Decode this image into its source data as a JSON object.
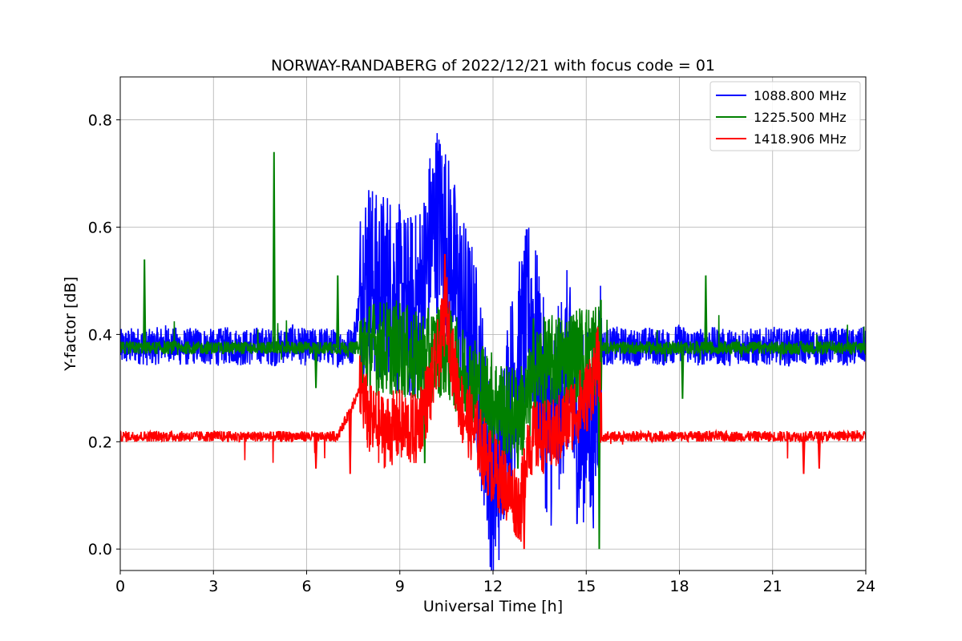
{
  "chart_data": {
    "type": "line",
    "title": "NORWAY-RANDABERG of 2022/12/21 with focus code = 01",
    "xlabel": "Universal Time [h]",
    "ylabel": "Y-factor [dB]",
    "xlim": [
      0,
      24
    ],
    "ylim": [
      -0.04,
      0.88
    ],
    "xticks": [
      0,
      3,
      6,
      9,
      12,
      15,
      18,
      21,
      24
    ],
    "xtick_labels": [
      "0",
      "3",
      "6",
      "9",
      "12",
      "15",
      "18",
      "21",
      "24"
    ],
    "yticks": [
      0.0,
      0.2,
      0.4,
      0.6,
      0.8
    ],
    "ytick_labels": [
      "0.0",
      "0.2",
      "0.4",
      "0.6",
      "0.8"
    ],
    "grid": true,
    "legend_position": "top-right",
    "series": [
      {
        "name": "1088.800 MHz",
        "color": "#0000ff",
        "x": [
          0,
          0.5,
          1.0,
          1.5,
          2.0,
          2.5,
          3.0,
          3.5,
          4.0,
          4.5,
          5.0,
          5.5,
          6.0,
          6.5,
          7.0,
          7.5,
          7.8,
          8.0,
          8.3,
          8.6,
          8.9,
          9.2,
          9.5,
          9.8,
          10.0,
          10.2,
          10.4,
          10.6,
          10.8,
          11.0,
          11.2,
          11.4,
          11.6,
          11.8,
          12.0,
          12.2,
          12.4,
          12.6,
          12.8,
          13.0,
          13.2,
          13.4,
          13.6,
          13.8,
          14.0,
          14.2,
          14.4,
          14.6,
          14.8,
          15.0,
          15.2,
          15.5,
          16.0,
          16.5,
          17.0,
          17.5,
          18.0,
          18.5,
          19.0,
          19.5,
          20.0,
          20.5,
          21.0,
          21.5,
          22.0,
          22.5,
          23.0,
          23.5,
          24.0
        ],
        "y": [
          0.375,
          0.38,
          0.375,
          0.385,
          0.375,
          0.38,
          0.375,
          0.38,
          0.375,
          0.38,
          0.375,
          0.385,
          0.375,
          0.38,
          0.375,
          0.38,
          0.5,
          0.52,
          0.48,
          0.5,
          0.47,
          0.45,
          0.45,
          0.5,
          0.58,
          0.62,
          0.6,
          0.55,
          0.5,
          0.45,
          0.42,
          0.38,
          0.3,
          0.2,
          0.1,
          0.15,
          0.25,
          0.3,
          0.35,
          0.4,
          0.45,
          0.38,
          0.3,
          0.2,
          0.25,
          0.3,
          0.35,
          0.25,
          0.2,
          0.25,
          0.2,
          0.375,
          0.38,
          0.375,
          0.38,
          0.375,
          0.385,
          0.375,
          0.38,
          0.375,
          0.38,
          0.375,
          0.38,
          0.375,
          0.38,
          0.375,
          0.38,
          0.375,
          0.38
        ]
      },
      {
        "name": "1225.500 MHz",
        "color": "#008000",
        "x": [
          0,
          0.8,
          1.5,
          3.0,
          4.95,
          6.0,
          7.0,
          7.8,
          9.0,
          9.6,
          10.4,
          11.0,
          11.6,
          12.0,
          12.5,
          13.0,
          13.5,
          14.5,
          15.4,
          16.0,
          18.0,
          18.85,
          20.0,
          22.0,
          24.0
        ],
        "y": [
          0.375,
          0.375,
          0.375,
          0.375,
          0.375,
          0.375,
          0.375,
          0.375,
          0.375,
          0.35,
          0.375,
          0.33,
          0.3,
          0.28,
          0.25,
          0.26,
          0.34,
          0.36,
          0.375,
          0.375,
          0.375,
          0.375,
          0.375,
          0.375,
          0.375
        ],
        "spikes": [
          [
            0.78,
            0.54
          ],
          [
            4.95,
            0.74
          ],
          [
            7.0,
            0.51
          ],
          [
            6.3,
            0.3
          ],
          [
            9.8,
            0.16
          ],
          [
            15.42,
            0.0
          ],
          [
            18.1,
            0.28
          ],
          [
            18.85,
            0.51
          ],
          [
            12.8,
            0.15
          ],
          [
            13.3,
            0.43
          ]
        ]
      },
      {
        "name": "1418.906 MHz",
        "color": "#ff0000",
        "x": [
          0,
          1.0,
          2.0,
          3.0,
          4.0,
          5.0,
          6.0,
          7.0,
          7.75,
          8.0,
          8.5,
          9.0,
          9.5,
          10.0,
          10.3,
          10.5,
          10.7,
          11.0,
          11.5,
          11.7,
          12.0,
          12.3,
          12.6,
          12.9,
          13.1,
          13.5,
          14.0,
          14.5,
          15.0,
          15.4,
          15.5,
          16.0,
          17.0,
          18.0,
          19.0,
          20.0,
          21.0,
          22.0,
          23.0,
          24.0
        ],
        "y": [
          0.21,
          0.21,
          0.21,
          0.21,
          0.21,
          0.21,
          0.21,
          0.21,
          0.3,
          0.24,
          0.22,
          0.23,
          0.22,
          0.3,
          0.38,
          0.45,
          0.35,
          0.26,
          0.21,
          0.18,
          0.15,
          0.13,
          0.1,
          0.08,
          0.2,
          0.21,
          0.21,
          0.25,
          0.28,
          0.35,
          0.21,
          0.21,
          0.21,
          0.21,
          0.21,
          0.21,
          0.21,
          0.21,
          0.21,
          0.21
        ],
        "spikes": [
          [
            6.3,
            0.15
          ],
          [
            7.4,
            0.14
          ],
          [
            10.45,
            0.55
          ],
          [
            13.0,
            0.0
          ],
          [
            22.5,
            0.15
          ],
          [
            22.0,
            0.14
          ]
        ]
      }
    ]
  }
}
